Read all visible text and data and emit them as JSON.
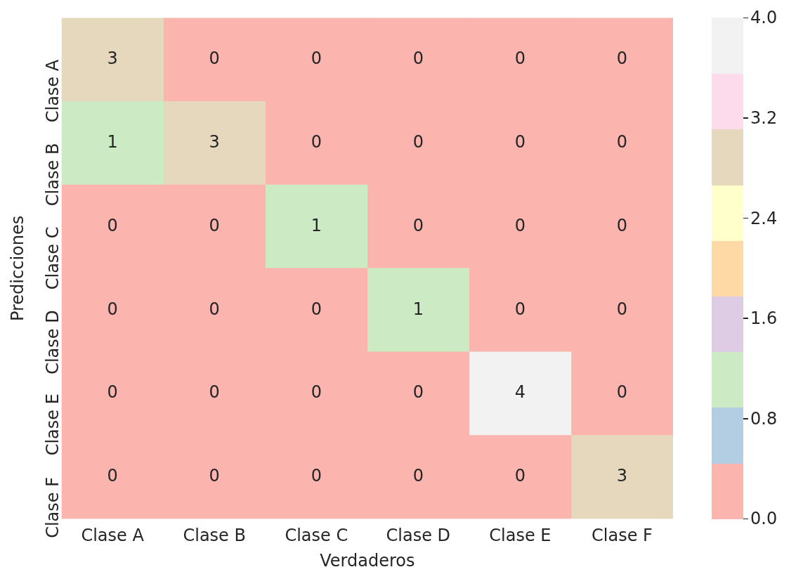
{
  "chart_data": {
    "type": "heatmap",
    "xlabel": "Verdaderos",
    "ylabel": "Predicciones",
    "categories": [
      "Clase A",
      "Clase B",
      "Clase C",
      "Clase D",
      "Clase E",
      "Clase F"
    ],
    "y_categories": [
      "Clase A",
      "Clase B",
      "Clase C",
      "Clase D",
      "Clase E",
      "Clase F"
    ],
    "cells": [
      [
        3,
        0,
        0,
        0,
        0,
        0
      ],
      [
        1,
        3,
        0,
        0,
        0,
        0
      ],
      [
        0,
        0,
        1,
        0,
        0,
        0
      ],
      [
        0,
        0,
        0,
        1,
        0,
        0
      ],
      [
        0,
        0,
        0,
        0,
        4,
        0
      ],
      [
        0,
        0,
        0,
        0,
        0,
        3
      ]
    ],
    "data_labels": true,
    "clim": [
      0,
      4
    ],
    "cticks": [
      {
        "value": 0,
        "label": "0.0"
      },
      0.8,
      1.6,
      2.4,
      3.2,
      {
        "value": 4,
        "label": "4.0"
      }
    ]
  }
}
